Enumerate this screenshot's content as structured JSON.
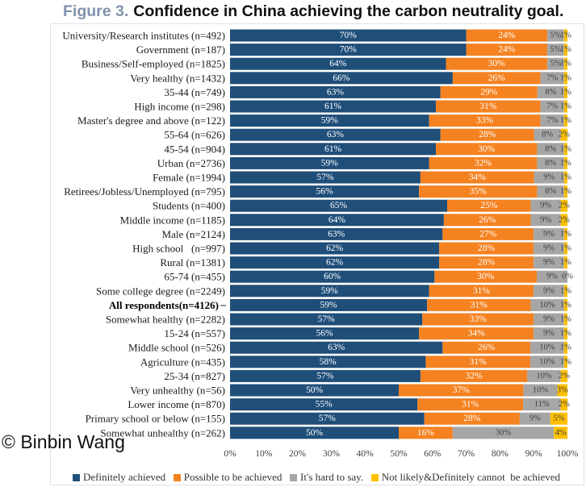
{
  "chart_data": {
    "type": "bar",
    "orientation": "horizontal",
    "stacked": true,
    "figure_label": "Figure 3.",
    "title": "Confidence in China achieving the carbon neutrality goal.",
    "categories": [
      "University/Research institutes (n=492)",
      "Government (n=187)",
      "Business/Self-employed (n=1825)",
      "Very healthy (n=1432)",
      "35-44 (n=749)",
      "High income (n=298)",
      "Master's degree and above (n=122)",
      "55-64 (n=626)",
      "45-54 (n=904)",
      "Urban (n=2736)",
      "Female (n=1994)",
      "Retirees/Jobless/Unemployed (n=795)",
      "Students (n=400)",
      "Middle income (n=1185)",
      "Male (n=2124)",
      "High school   (n=997)",
      "Rural (n=1381)",
      "65-74 (n=455)",
      "Some college degree (n=2249)",
      "All respondents(n=4126)",
      "Somewhat healthy (n=2282)",
      "15-24 (n=557)",
      "Middle school (n=526)",
      "Agriculture (n=435)",
      "25-34 (n=827)",
      "Very unhealthy (n=56)",
      "Lower income (n=870)",
      "Primary school or below (n=155)",
      "Somewhat unhealthy (n=262)"
    ],
    "bold_category_index": 19,
    "series": [
      {
        "name": "Definitely achieved",
        "color": "#1f4e79",
        "values": [
          70,
          70,
          64,
          66,
          63,
          61,
          59,
          63,
          61,
          59,
          57,
          56,
          65,
          64,
          63,
          62,
          62,
          60,
          59,
          59,
          57,
          56,
          63,
          58,
          57,
          50,
          55,
          57,
          50
        ]
      },
      {
        "name": "Possible to be achieved",
        "color": "#f58220",
        "values": [
          24,
          24,
          30,
          26,
          29,
          31,
          33,
          28,
          30,
          32,
          34,
          35,
          25,
          26,
          27,
          28,
          28,
          30,
          31,
          31,
          33,
          34,
          26,
          31,
          32,
          37,
          31,
          28,
          16
        ]
      },
      {
        "name": "It's hard to say.",
        "color": "#a6a6a6",
        "values": [
          5,
          5,
          5,
          7,
          8,
          7,
          7,
          8,
          8,
          8,
          9,
          8,
          9,
          9,
          9,
          9,
          9,
          9,
          9,
          10,
          9,
          9,
          10,
          10,
          10,
          10,
          11,
          9,
          30
        ]
      },
      {
        "name": "Not likely&Definitely cannot  be achieved",
        "color": "#ffc000",
        "values": [
          1,
          1,
          1,
          1,
          1,
          1,
          1,
          2,
          1,
          1,
          1,
          1,
          2,
          2,
          1,
          1,
          1,
          0,
          1,
          1,
          1,
          1,
          1,
          1,
          2,
          3,
          2,
          5,
          4
        ]
      }
    ],
    "xlim": [
      0,
      100
    ],
    "x_ticks": [
      0,
      10,
      20,
      30,
      40,
      50,
      60,
      70,
      80,
      90,
      100
    ],
    "x_tick_labels": [
      "0%",
      "10%",
      "20%",
      "30%",
      "40%",
      "50%",
      "60%",
      "70%",
      "80%",
      "90%",
      "100%"
    ],
    "grid": false,
    "data_labels": true,
    "legend": "bottom"
  },
  "watermark": "© Binbin Wang"
}
